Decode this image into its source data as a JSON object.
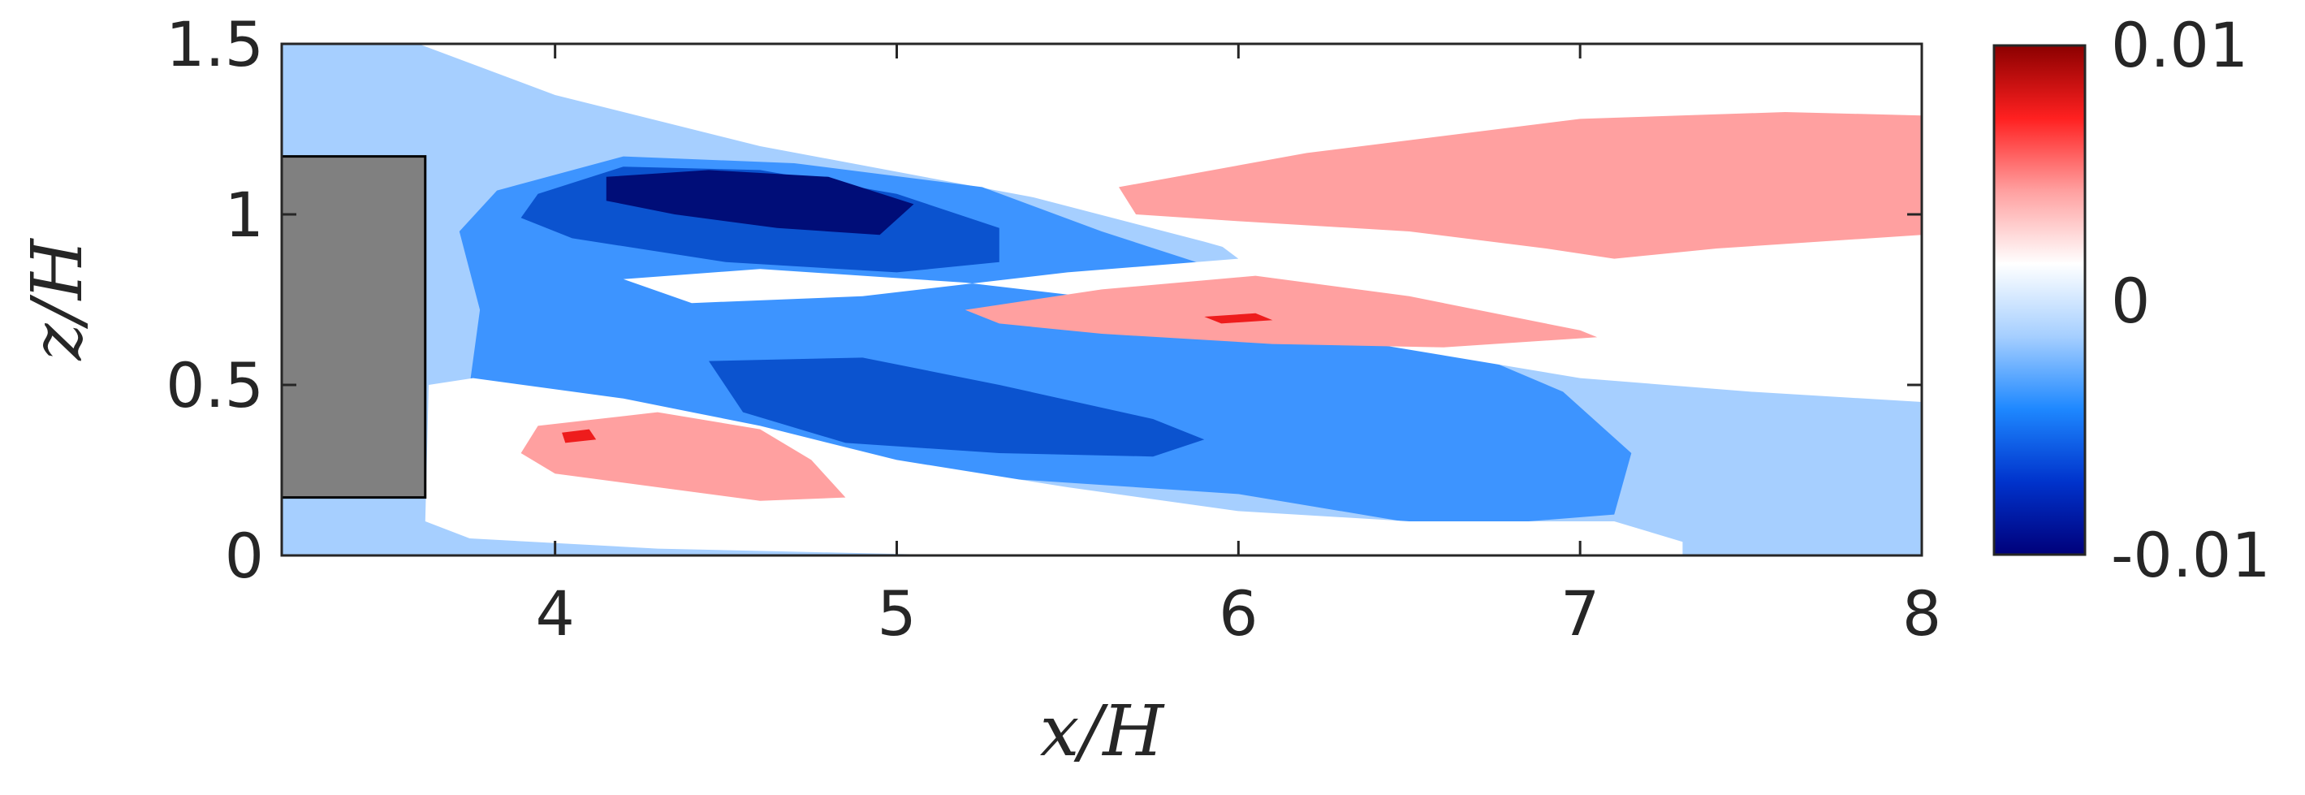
{
  "chart_data": {
    "type": "heatmap",
    "title": "",
    "xlabel": "x/H",
    "ylabel": "z/H",
    "xlim": [
      3.2,
      8
    ],
    "ylim": [
      0,
      1.5
    ],
    "x_ticks": [
      "4",
      "5",
      "6",
      "7",
      "8"
    ],
    "y_ticks": [
      "0",
      "0.5",
      "1",
      "1.5"
    ],
    "colorbar": {
      "range": [
        -0.01,
        0.01
      ],
      "tick_labels": [
        "0.01",
        "0",
        "-0.01"
      ],
      "colors": [
        "#00007a",
        "#0033cc",
        "#1e88ff",
        "#a6cfff",
        "#ffffff",
        "#ffa0a0",
        "#ff2020",
        "#8b0000"
      ]
    },
    "obstacle": {
      "x_range": [
        3.2,
        3.62
      ],
      "z_range": [
        0.17,
        1.17
      ],
      "color": "#808080"
    },
    "levels": {
      "-0.0025": "#a6cfff",
      "-0.005": "#3d94ff",
      "-0.0075": "#0b53cf",
      "-0.01": "#000d78",
      "0.0025": "#ffa0a0",
      "0.005": "#ee1c1c"
    },
    "regions": [
      {
        "level": -0.0025,
        "points": [
          [
            3.2,
            1.5
          ],
          [
            3.6,
            1.5
          ],
          [
            4.0,
            1.35
          ],
          [
            4.6,
            1.2
          ],
          [
            5.4,
            1.05
          ],
          [
            5.9,
            0.92
          ],
          [
            6.5,
            0.75
          ],
          [
            7.2,
            0.58
          ],
          [
            8,
            0.5
          ],
          [
            8,
            0
          ],
          [
            3.2,
            0
          ],
          [
            3.2,
            0.17
          ],
          [
            3.62,
            0.17
          ],
          [
            3.62,
            1.17
          ],
          [
            3.2,
            1.17
          ]
        ]
      },
      {
        "level": -0.005,
        "points": [
          [
            3.83,
            1.07
          ],
          [
            4.2,
            1.17
          ],
          [
            4.7,
            1.15
          ],
          [
            5.25,
            1.08
          ],
          [
            5.6,
            0.95
          ],
          [
            6.0,
            0.82
          ],
          [
            6.55,
            0.65
          ],
          [
            6.95,
            0.48
          ],
          [
            7.15,
            0.3
          ],
          [
            7.1,
            0.12
          ],
          [
            6.6,
            0.08
          ],
          [
            6.0,
            0.18
          ],
          [
            5.4,
            0.22
          ],
          [
            4.9,
            0.25
          ],
          [
            4.5,
            0.35
          ],
          [
            4.0,
            0.45
          ],
          [
            3.75,
            0.5
          ],
          [
            3.78,
            0.72
          ],
          [
            3.72,
            0.95
          ]
        ]
      },
      {
        "level": -0.0075,
        "points": [
          [
            3.95,
            1.06
          ],
          [
            4.2,
            1.14
          ],
          [
            4.6,
            1.13
          ],
          [
            5.0,
            1.06
          ],
          [
            5.3,
            0.96
          ],
          [
            5.3,
            0.86
          ],
          [
            5.0,
            0.83
          ],
          [
            4.5,
            0.86
          ],
          [
            4.05,
            0.93
          ],
          [
            3.9,
            0.99
          ]
        ]
      },
      {
        "level": -0.0075,
        "points": [
          [
            4.45,
            0.57
          ],
          [
            4.9,
            0.58
          ],
          [
            5.3,
            0.5
          ],
          [
            5.75,
            0.4
          ],
          [
            5.9,
            0.34
          ],
          [
            5.75,
            0.29
          ],
          [
            5.3,
            0.3
          ],
          [
            4.85,
            0.33
          ],
          [
            4.55,
            0.42
          ]
        ]
      },
      {
        "level": -0.01,
        "points": [
          [
            4.15,
            1.11
          ],
          [
            4.45,
            1.13
          ],
          [
            4.8,
            1.11
          ],
          [
            5.05,
            1.03
          ],
          [
            4.95,
            0.94
          ],
          [
            4.65,
            0.96
          ],
          [
            4.35,
            1.0
          ],
          [
            4.15,
            1.04
          ]
        ]
      },
      {
        "level": 0,
        "points": [
          [
            3.63,
            0.5
          ],
          [
            3.76,
            0.52
          ],
          [
            4.2,
            0.46
          ],
          [
            4.6,
            0.38
          ],
          [
            5.0,
            0.28
          ],
          [
            5.5,
            0.2
          ],
          [
            6.0,
            0.13
          ],
          [
            6.5,
            0.1
          ],
          [
            7.1,
            0.1
          ],
          [
            7.3,
            0.04
          ],
          [
            7.3,
            0.0
          ],
          [
            5.2,
            0.0
          ],
          [
            4.3,
            0.02
          ],
          [
            3.75,
            0.05
          ],
          [
            3.62,
            0.1
          ]
        ]
      },
      {
        "level": 0,
        "points": [
          [
            4.2,
            0.81
          ],
          [
            4.6,
            0.84
          ],
          [
            5.2,
            0.8
          ],
          [
            5.8,
            0.73
          ],
          [
            6.4,
            0.62
          ],
          [
            7.0,
            0.52
          ],
          [
            7.5,
            0.48
          ],
          [
            8.0,
            0.45
          ],
          [
            8.0,
            1.5
          ],
          [
            4.2,
            1.5
          ],
          [
            5.4,
            1.2
          ],
          [
            5.8,
            1.02
          ],
          [
            6.0,
            0.87
          ],
          [
            5.5,
            0.83
          ],
          [
            4.9,
            0.76
          ],
          [
            4.4,
            0.74
          ]
        ]
      },
      {
        "level": 0.0025,
        "points": [
          [
            5.65,
            1.08
          ],
          [
            6.2,
            1.18
          ],
          [
            7.0,
            1.28
          ],
          [
            7.6,
            1.3
          ],
          [
            8.0,
            1.29
          ],
          [
            8.0,
            0.94
          ],
          [
            7.4,
            0.9
          ],
          [
            7.1,
            0.87
          ],
          [
            6.9,
            0.9
          ],
          [
            6.5,
            0.95
          ],
          [
            6.0,
            0.98
          ],
          [
            5.7,
            1.0
          ]
        ]
      },
      {
        "level": 0.0025,
        "points": [
          [
            5.2,
            0.72
          ],
          [
            5.6,
            0.78
          ],
          [
            6.05,
            0.82
          ],
          [
            6.5,
            0.76
          ],
          [
            7.0,
            0.66
          ],
          [
            7.05,
            0.64
          ],
          [
            6.6,
            0.61
          ],
          [
            6.1,
            0.62
          ],
          [
            5.6,
            0.65
          ],
          [
            5.3,
            0.68
          ]
        ]
      },
      {
        "level": 0.0025,
        "points": [
          [
            3.95,
            0.38
          ],
          [
            4.3,
            0.42
          ],
          [
            4.6,
            0.37
          ],
          [
            4.75,
            0.28
          ],
          [
            4.85,
            0.17
          ],
          [
            4.6,
            0.16
          ],
          [
            4.3,
            0.2
          ],
          [
            4.0,
            0.24
          ],
          [
            3.9,
            0.3
          ]
        ]
      },
      {
        "level": 0.005,
        "points": [
          [
            5.9,
            0.7
          ],
          [
            6.05,
            0.71
          ],
          [
            6.1,
            0.69
          ],
          [
            5.95,
            0.68
          ]
        ]
      },
      {
        "level": 0.005,
        "points": [
          [
            4.02,
            0.36
          ],
          [
            4.1,
            0.37
          ],
          [
            4.12,
            0.34
          ],
          [
            4.03,
            0.33
          ]
        ]
      }
    ]
  }
}
